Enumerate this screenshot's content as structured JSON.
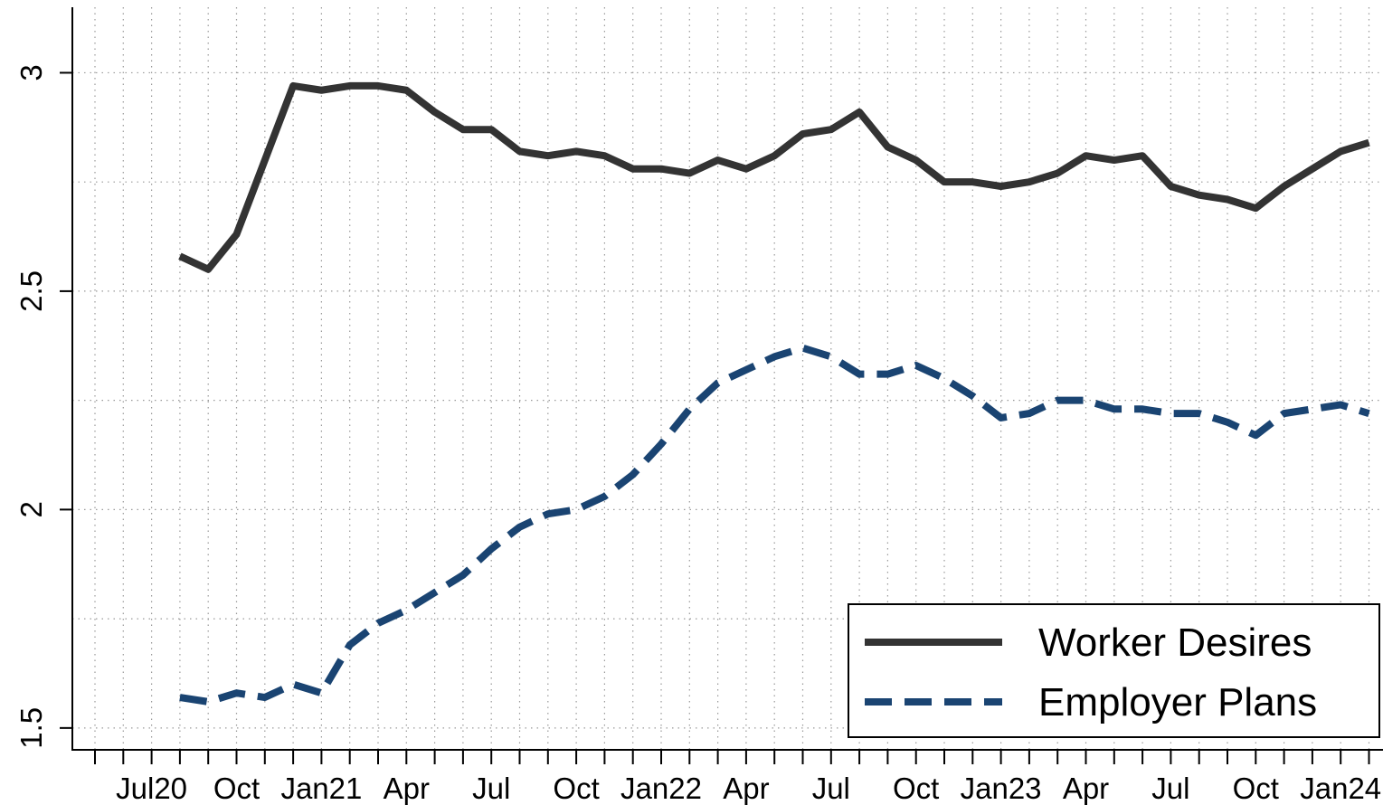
{
  "chart_data": {
    "type": "line",
    "categories": [
      null,
      null,
      "Jul20",
      null,
      null,
      "Oct",
      null,
      null,
      "Jan21",
      null,
      null,
      "Apr",
      null,
      null,
      "Jul",
      null,
      null,
      "Oct",
      null,
      null,
      "Jan22",
      null,
      null,
      "Apr",
      null,
      null,
      "Jul",
      null,
      null,
      "Oct",
      null,
      null,
      "Jan23",
      null,
      null,
      "Apr",
      null,
      null,
      "Jul",
      null,
      null,
      "Oct",
      null,
      null,
      "Jan24",
      null
    ],
    "series": [
      {
        "name": "Worker Desires",
        "color": "#333333",
        "dash": false,
        "values": [
          null,
          null,
          null,
          2.58,
          2.55,
          2.63,
          2.8,
          2.97,
          2.96,
          2.97,
          2.97,
          2.96,
          2.91,
          2.87,
          2.87,
          2.82,
          2.81,
          2.82,
          2.81,
          2.78,
          2.78,
          2.77,
          2.8,
          2.78,
          2.81,
          2.86,
          2.87,
          2.91,
          2.83,
          2.8,
          2.75,
          2.75,
          2.74,
          2.75,
          2.77,
          2.81,
          2.8,
          2.81,
          2.74,
          2.72,
          2.71,
          2.69,
          2.74,
          2.78,
          2.82,
          2.84
        ]
      },
      {
        "name": "Employer Plans",
        "color": "#1a4472",
        "dash": true,
        "values": [
          null,
          null,
          null,
          1.57,
          1.56,
          1.58,
          1.57,
          1.6,
          1.58,
          1.69,
          1.74,
          1.77,
          1.81,
          1.85,
          1.91,
          1.96,
          1.99,
          2.0,
          2.03,
          2.08,
          2.15,
          2.23,
          2.29,
          2.32,
          2.35,
          2.37,
          2.35,
          2.31,
          2.31,
          2.33,
          2.3,
          2.26,
          2.21,
          2.22,
          2.25,
          2.25,
          2.23,
          2.23,
          2.22,
          2.22,
          2.2,
          2.17,
          2.22,
          2.23,
          2.24,
          2.22
        ]
      }
    ],
    "ylim": [
      1.45,
      3.15
    ],
    "yticks": [
      1.5,
      2,
      2.5,
      3
    ],
    "yminor": [
      1.75,
      2.25,
      2.75
    ],
    "grid": true,
    "legend": "lower right"
  }
}
